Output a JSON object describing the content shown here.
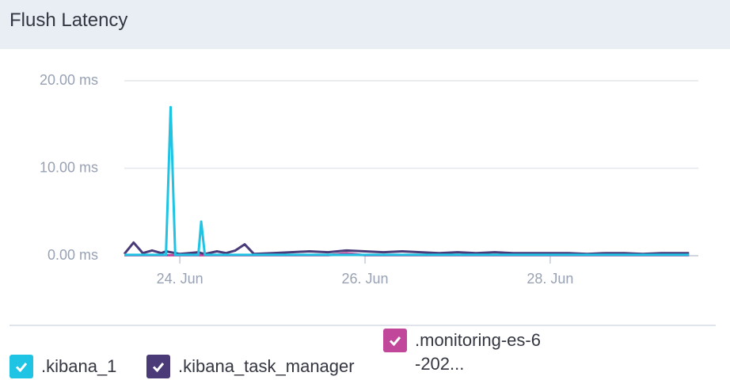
{
  "chart_data": {
    "type": "line",
    "title": "Flush Latency",
    "x": [
      23.4,
      23.5,
      23.6,
      23.7,
      23.8,
      23.85,
      23.9,
      23.95,
      24.0,
      24.1,
      24.2,
      24.23,
      24.27,
      24.4,
      24.5,
      24.6,
      24.7,
      24.8,
      25.0,
      25.2,
      25.4,
      25.6,
      25.8,
      26.0,
      26.2,
      26.4,
      26.6,
      26.8,
      27.0,
      27.2,
      27.4,
      27.6,
      27.8,
      28.0,
      28.2,
      28.4,
      28.6,
      28.8,
      29.0,
      29.2,
      29.5
    ],
    "series": [
      {
        "name": ".kibana_1",
        "color": "#1fc4e4",
        "values": [
          0.1,
          0.1,
          0.1,
          0.1,
          0.1,
          0.1,
          17,
          0.1,
          0.1,
          0.1,
          0.1,
          3.9,
          0.1,
          0.1,
          0.1,
          0.1,
          0.1,
          0.1,
          0.1,
          0.1,
          0.1,
          0.1,
          0.1,
          0.1,
          0.1,
          0.1,
          0.1,
          0.1,
          0.1,
          0.1,
          0.1,
          0.1,
          0.1,
          0.1,
          0.1,
          0.1,
          0.1,
          0.1,
          0.1,
          0.1,
          0.1
        ]
      },
      {
        "name": ".kibana_task_manager",
        "color": "#4a3a78",
        "values": [
          0.2,
          1.5,
          0.3,
          0.6,
          0.3,
          0.5,
          0.4,
          0.3,
          0.2,
          0.3,
          0.4,
          0.3,
          0.2,
          0.5,
          0.3,
          0.6,
          1.3,
          0.2,
          0.3,
          0.4,
          0.5,
          0.4,
          0.6,
          0.5,
          0.4,
          0.5,
          0.4,
          0.3,
          0.4,
          0.3,
          0.4,
          0.3,
          0.3,
          0.3,
          0.3,
          0.2,
          0.3,
          0.3,
          0.2,
          0.3,
          0.3
        ]
      },
      {
        "name": ".monitoring-es-6-202...",
        "color": "#c0479a",
        "values": [
          0.05,
          0.05,
          0.05,
          0.05,
          0.05,
          0.05,
          0.05,
          0.05,
          0.05,
          0.05,
          0.05,
          0.05,
          0.05,
          0.05,
          0.05,
          0.05,
          0.05,
          0.05,
          0.05,
          0.05,
          0.05,
          0.05,
          0.3,
          0.05,
          0.05,
          0.05,
          0.05,
          0.05,
          0.05,
          0.05,
          0.05,
          0.05,
          0.05,
          0.05,
          0.05,
          0.05,
          0.05,
          0.05,
          0.05,
          0.05,
          0.05
        ]
      }
    ],
    "xlim": [
      23.4,
      29.6
    ],
    "xticks": [
      {
        "value": 24,
        "label": "24. Jun"
      },
      {
        "value": 26,
        "label": "26. Jun"
      },
      {
        "value": 28,
        "label": "28. Jun"
      }
    ],
    "ylim": [
      0,
      20
    ],
    "yticks": [
      {
        "value": 0,
        "label": "0.00 ms"
      },
      {
        "value": 10,
        "label": "10.00 ms"
      },
      {
        "value": 20,
        "label": "20.00 ms"
      }
    ],
    "grid": true
  }
}
